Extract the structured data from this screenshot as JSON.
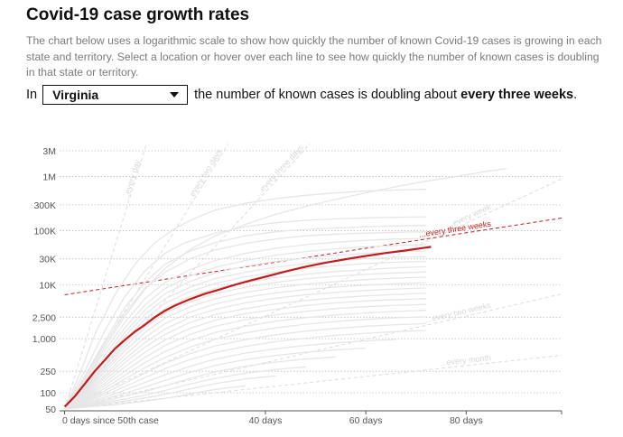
{
  "header": {
    "title": "Covid-19 case growth rates",
    "description": "The chart below uses a logarithmic scale to show how quickly the number of known Covid-19 cases is growing in each state and territory. Select a location or hover over each line to see how quickly the number of known cases is doubling in that state or territory."
  },
  "selector": {
    "prefix": "In",
    "selected": "Virginia",
    "sentence": "the number of known cases is doubling about",
    "rate_phrase": "every three weeks",
    "end_punct": "."
  },
  "colors": {
    "highlight": "#c41b1b",
    "background_lines": "#e6e6e6",
    "reference_lines": "#dcdcdc",
    "grid": "#bdbdbd"
  },
  "chart_data": {
    "type": "line",
    "scale": "log",
    "xlabel": "days since 50th case",
    "x_ticks": [
      {
        "value": 0,
        "label": "0 days since 50th case"
      },
      {
        "value": 40,
        "label": "40 days"
      },
      {
        "value": 60,
        "label": "60 days"
      },
      {
        "value": 80,
        "label": "80 days"
      }
    ],
    "y_ticks": [
      {
        "value": 50,
        "label": "50"
      },
      {
        "value": 100,
        "label": "100"
      },
      {
        "value": 250,
        "label": "250"
      },
      {
        "value": 1000,
        "label": "1,000"
      },
      {
        "value": 2500,
        "label": "2,500"
      },
      {
        "value": 10000,
        "label": "10K"
      },
      {
        "value": 30000,
        "label": "30K"
      },
      {
        "value": 100000,
        "label": "100K"
      },
      {
        "value": 300000,
        "label": "300K"
      },
      {
        "value": 1000000,
        "label": "1M"
      },
      {
        "value": 3000000,
        "label": "3M"
      }
    ],
    "xlim": [
      -1,
      99
    ],
    "ylim": [
      50,
      4000000
    ],
    "reference_lines": [
      {
        "label": "...every day",
        "doubling_days": 1,
        "start_value": 50
      },
      {
        "label": "...every two days",
        "doubling_days": 2,
        "start_value": 50
      },
      {
        "label": "...every three days",
        "doubling_days": 3,
        "start_value": 50
      },
      {
        "label": "...every week",
        "doubling_days": 7,
        "start_value": 50
      },
      {
        "label": "...every three weeks",
        "doubling_days": 21,
        "start_value": 6500,
        "highlight": true
      },
      {
        "label": "...every two weeks",
        "doubling_days": 14,
        "start_value": 50
      },
      {
        "label": "...every month",
        "doubling_days": 30,
        "start_value": 50
      }
    ],
    "highlight_series": {
      "name": "Virginia",
      "x": [
        0,
        2,
        4,
        6,
        8,
        10,
        12,
        14,
        16,
        18,
        20,
        22,
        25,
        28,
        31,
        34,
        37,
        40,
        44,
        48,
        52,
        56,
        60,
        64,
        68,
        72,
        73
      ],
      "y": [
        55,
        85,
        145,
        250,
        400,
        650,
        950,
        1350,
        1800,
        2500,
        3300,
        4100,
        5400,
        6800,
        8200,
        10000,
        11900,
        14000,
        17500,
        21500,
        25500,
        29500,
        34000,
        38500,
        43000,
        48500,
        50000
      ]
    },
    "background_series": [
      {
        "x": [
          0,
          3,
          6,
          10,
          14,
          18,
          22,
          26,
          30,
          36,
          42,
          48,
          54,
          60,
          66,
          72
        ],
        "y": [
          50,
          220,
          1200,
          6500,
          24000,
          60000,
          110000,
          170000,
          240000,
          320000,
          390000,
          450000,
          500000,
          540000,
          565000,
          580000
        ]
      },
      {
        "x": [
          0,
          4,
          8,
          12,
          16,
          20,
          25,
          30,
          36,
          42,
          48,
          54,
          60,
          66,
          72,
          78,
          84,
          88
        ],
        "y": [
          50,
          160,
          700,
          2600,
          8200,
          20000,
          45000,
          80000,
          130000,
          200000,
          280000,
          380000,
          500000,
          650000,
          820000,
          1000000,
          1250000,
          1400000
        ]
      },
      {
        "x": [
          0,
          4,
          8,
          12,
          16,
          20,
          24,
          30,
          36,
          42,
          48,
          54,
          60,
          66,
          72
        ],
        "y": [
          50,
          250,
          1400,
          6000,
          18000,
          38000,
          60000,
          90000,
          118000,
          140000,
          155000,
          165000,
          172000,
          176000,
          180000
        ]
      },
      {
        "x": [
          0,
          4,
          8,
          12,
          16,
          20,
          25,
          30,
          36,
          42,
          48,
          54,
          60,
          66,
          72
        ],
        "y": [
          50,
          200,
          900,
          3800,
          11000,
          24000,
          42000,
          60000,
          80000,
          95000,
          105000,
          112000,
          118000,
          122000,
          125000
        ]
      },
      {
        "x": [
          0,
          4,
          8,
          12,
          16,
          20,
          25,
          30,
          36,
          42,
          48,
          54,
          60,
          66,
          72
        ],
        "y": [
          50,
          180,
          800,
          3000,
          8500,
          17000,
          30000,
          44000,
          58000,
          70000,
          80000,
          86000,
          90000,
          93000,
          95000
        ]
      },
      {
        "x": [
          0,
          4,
          8,
          12,
          16,
          20,
          25,
          30,
          36,
          42,
          48,
          54,
          60,
          66,
          72
        ],
        "y": [
          50,
          150,
          600,
          2000,
          5500,
          11000,
          19000,
          28000,
          38000,
          47000,
          55000,
          61000,
          66000,
          70000,
          72000
        ]
      },
      {
        "x": [
          0,
          4,
          8,
          12,
          16,
          20,
          25,
          30,
          36,
          42,
          48,
          54,
          60,
          66,
          72
        ],
        "y": [
          50,
          140,
          500,
          1600,
          4200,
          8500,
          14500,
          21000,
          28000,
          35000,
          41000,
          46000,
          50000,
          53000,
          55000
        ]
      },
      {
        "x": [
          0,
          4,
          8,
          12,
          16,
          20,
          25,
          30,
          36,
          42,
          48,
          54,
          60,
          66,
          72
        ],
        "y": [
          50,
          130,
          420,
          1300,
          3400,
          6800,
          11500,
          16500,
          22000,
          27000,
          31000,
          35000,
          38000,
          40000,
          42000
        ]
      },
      {
        "x": [
          0,
          4,
          8,
          12,
          16,
          20,
          25,
          30,
          36,
          42,
          48,
          54,
          60,
          66,
          72
        ],
        "y": [
          50,
          120,
          380,
          1100,
          2800,
          5500,
          9000,
          13000,
          17000,
          21000,
          24500,
          27500,
          30000,
          32000,
          33000
        ]
      },
      {
        "x": [
          0,
          4,
          8,
          12,
          16,
          20,
          25,
          30,
          36,
          42,
          48,
          54,
          60,
          66,
          72
        ],
        "y": [
          50,
          115,
          330,
          950,
          2300,
          4500,
          7500,
          10500,
          14000,
          17000,
          20000,
          22500,
          24500,
          26000,
          27000
        ]
      },
      {
        "x": [
          0,
          4,
          8,
          12,
          16,
          20,
          25,
          30,
          36,
          42,
          48,
          54,
          60,
          66,
          72
        ],
        "y": [
          50,
          110,
          300,
          800,
          1900,
          3600,
          6000,
          8500,
          11000,
          13500,
          15500,
          17500,
          19000,
          20500,
          21500
        ]
      },
      {
        "x": [
          0,
          4,
          8,
          12,
          16,
          20,
          25,
          30,
          36,
          42,
          48,
          54,
          60,
          66,
          72
        ],
        "y": [
          50,
          105,
          270,
          700,
          1600,
          3000,
          4800,
          6800,
          9000,
          11000,
          12800,
          14300,
          15500,
          16500,
          17200
        ]
      },
      {
        "x": [
          0,
          4,
          8,
          12,
          16,
          20,
          25,
          30,
          36,
          42,
          48,
          54,
          60,
          66,
          72
        ],
        "y": [
          50,
          100,
          240,
          600,
          1300,
          2400,
          3900,
          5500,
          7200,
          8800,
          10200,
          11400,
          12400,
          13200,
          13800
        ]
      },
      {
        "x": [
          0,
          4,
          8,
          12,
          16,
          20,
          25,
          30,
          36,
          42,
          48,
          54,
          60,
          66,
          72
        ],
        "y": [
          50,
          95,
          210,
          500,
          1050,
          1900,
          3100,
          4400,
          5800,
          7000,
          8100,
          9000,
          9800,
          10400,
          10900
        ]
      },
      {
        "x": [
          0,
          4,
          8,
          12,
          16,
          20,
          25,
          30,
          36,
          42,
          48,
          54,
          60,
          66,
          72
        ],
        "y": [
          50,
          90,
          190,
          420,
          850,
          1500,
          2500,
          3500,
          4600,
          5600,
          6500,
          7200,
          7800,
          8300,
          8700
        ]
      },
      {
        "x": [
          0,
          4,
          8,
          12,
          16,
          20,
          25,
          30,
          36,
          42,
          48,
          54,
          60,
          66,
          72
        ],
        "y": [
          50,
          85,
          170,
          360,
          700,
          1200,
          2000,
          2800,
          3600,
          4400,
          5100,
          5700,
          6200,
          6600,
          6900
        ]
      },
      {
        "x": [
          0,
          4,
          8,
          12,
          16,
          20,
          25,
          30,
          36,
          42,
          48,
          54,
          60,
          66,
          72
        ],
        "y": [
          50,
          82,
          150,
          300,
          560,
          950,
          1550,
          2200,
          2900,
          3500,
          4100,
          4600,
          5000,
          5300,
          5500
        ]
      },
      {
        "x": [
          0,
          4,
          8,
          12,
          16,
          20,
          25,
          30,
          36,
          42,
          48,
          54,
          60,
          66,
          72
        ],
        "y": [
          50,
          78,
          135,
          250,
          450,
          750,
          1200,
          1700,
          2250,
          2750,
          3200,
          3600,
          3900,
          4150,
          4300
        ]
      },
      {
        "x": [
          0,
          4,
          8,
          12,
          16,
          20,
          25,
          30,
          36,
          42,
          48,
          54,
          60,
          66,
          72
        ],
        "y": [
          50,
          75,
          120,
          210,
          360,
          580,
          920,
          1300,
          1700,
          2100,
          2450,
          2750,
          3000,
          3200,
          3350
        ]
      },
      {
        "x": [
          0,
          4,
          8,
          12,
          16,
          20,
          25,
          30,
          36,
          42,
          48,
          54,
          60,
          66,
          72
        ],
        "y": [
          50,
          72,
          108,
          180,
          290,
          450,
          700,
          980,
          1280,
          1580,
          1850,
          2080,
          2280,
          2430,
          2550
        ]
      },
      {
        "x": [
          0,
          4,
          8,
          12,
          16,
          20,
          25,
          30,
          36,
          42,
          48,
          54,
          60,
          66,
          72
        ],
        "y": [
          50,
          70,
          98,
          150,
          230,
          350,
          530,
          740,
          960,
          1180,
          1380,
          1550,
          1700,
          1820,
          1900
        ]
      },
      {
        "x": [
          0,
          4,
          8,
          12,
          16,
          20,
          25,
          30,
          36,
          42,
          48,
          54,
          60,
          66,
          72
        ],
        "y": [
          50,
          68,
          90,
          130,
          190,
          280,
          410,
          560,
          720,
          880,
          1020,
          1150,
          1260,
          1350,
          1420
        ]
      },
      {
        "x": [
          0,
          4,
          8,
          12,
          16,
          20,
          25,
          30,
          36,
          42,
          48,
          54,
          60,
          66
        ],
        "y": [
          50,
          65,
          82,
          112,
          155,
          215,
          310,
          420,
          540,
          650,
          750,
          840,
          910,
          970
        ]
      },
      {
        "x": [
          0,
          4,
          8,
          12,
          16,
          20,
          25,
          30,
          36,
          42,
          48,
          54,
          60
        ],
        "y": [
          50,
          62,
          76,
          98,
          128,
          170,
          240,
          320,
          410,
          490,
          560,
          620,
          670
        ]
      },
      {
        "x": [
          0,
          4,
          8,
          12,
          16,
          20,
          25,
          30,
          36,
          42,
          48,
          54
        ],
        "y": [
          50,
          60,
          70,
          86,
          105,
          135,
          185,
          245,
          310,
          370,
          420,
          460
        ]
      },
      {
        "x": [
          0,
          4,
          8,
          12,
          16,
          20,
          25,
          30,
          36,
          42,
          48
        ],
        "y": [
          50,
          58,
          66,
          76,
          90,
          110,
          145,
          185,
          230,
          270,
          300
        ]
      },
      {
        "x": [
          0,
          4,
          8,
          12,
          16,
          20,
          25,
          30,
          36,
          42
        ],
        "y": [
          50,
          56,
          62,
          70,
          80,
          94,
          118,
          148,
          180,
          205
        ]
      },
      {
        "x": [
          0,
          5,
          10,
          15,
          20,
          25,
          30,
          36
        ],
        "y": [
          50,
          55,
          60,
          68,
          78,
          95,
          115,
          135
        ]
      }
    ]
  }
}
